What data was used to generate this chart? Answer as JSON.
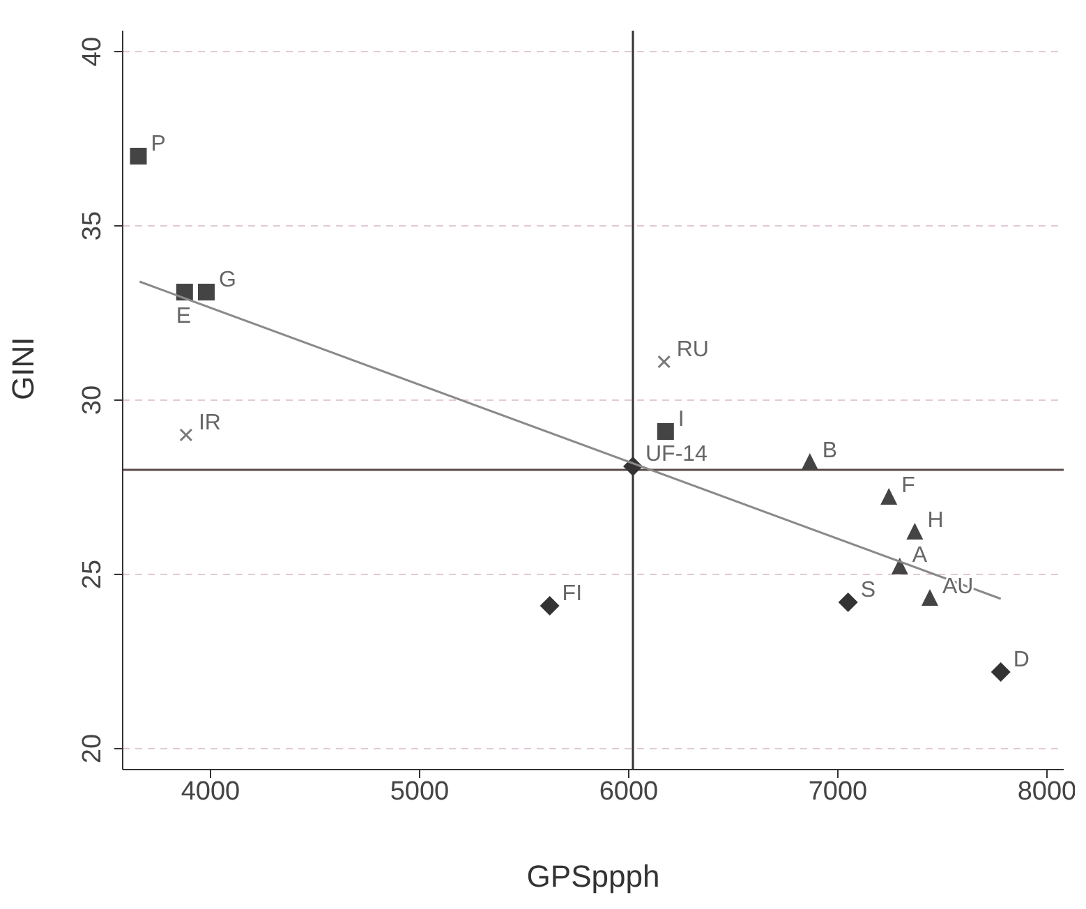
{
  "chart_data": {
    "type": "scatter",
    "xlabel": "GPSppph",
    "ylabel": "GINI",
    "xlim": [
      3580,
      8080
    ],
    "ylim": [
      19.4,
      40.6
    ],
    "xticks": [
      4000,
      5000,
      6000,
      7000,
      8000
    ],
    "yticks": [
      20,
      25,
      30,
      35,
      40
    ],
    "grid": "y",
    "legend": false,
    "series": [
      {
        "marker": "square",
        "color": "#444444",
        "x": [
          3655,
          3876,
          3980,
          6176
        ],
        "values": [
          37.0,
          33.1,
          33.1,
          29.1
        ]
      },
      {
        "marker": "cross",
        "color": "#777777",
        "x": [
          3883,
          6169
        ],
        "values": [
          29.0,
          31.1
        ]
      },
      {
        "marker": "diamond",
        "color": "#333333",
        "x": [
          6020,
          5622,
          7049,
          7779
        ],
        "values": [
          28.1,
          24.1,
          24.2,
          22.2
        ]
      },
      {
        "marker": "triangle",
        "color": "#444444",
        "x": [
          6866,
          7244,
          7368,
          7296,
          7440
        ],
        "values": [
          28.2,
          27.2,
          26.2,
          25.2,
          24.3
        ]
      },
      {
        "type": "line",
        "color": "#8a8a8a",
        "x": [
          3661,
          7779
        ],
        "values": [
          33.4,
          24.3
        ]
      }
    ],
    "ref_lines": [
      {
        "axis": "x",
        "value": 6020,
        "color": "#333333"
      },
      {
        "axis": "y",
        "value": 28.0,
        "color": "#5a4a48"
      }
    ],
    "annotations": [
      {
        "text": "P",
        "x": 3655,
        "y": 37.0
      },
      {
        "text": "E",
        "x": 3876,
        "y": 33.1
      },
      {
        "text": "G",
        "x": 3980,
        "y": 33.1
      },
      {
        "text": "I",
        "x": 6176,
        "y": 29.1
      },
      {
        "text": "IR",
        "x": 3883,
        "y": 29.0
      },
      {
        "text": "RU",
        "x": 6169,
        "y": 31.1
      },
      {
        "text": "UF-14",
        "x": 6020,
        "y": 28.1
      },
      {
        "text": "FI",
        "x": 5622,
        "y": 24.1
      },
      {
        "text": "S",
        "x": 7049,
        "y": 24.2
      },
      {
        "text": "D",
        "x": 7779,
        "y": 22.2
      },
      {
        "text": "B",
        "x": 6866,
        "y": 28.2
      },
      {
        "text": "F",
        "x": 7244,
        "y": 27.2
      },
      {
        "text": "H",
        "x": 7368,
        "y": 26.2
      },
      {
        "text": "A",
        "x": 7296,
        "y": 25.2
      },
      {
        "text": "AU",
        "x": 7440,
        "y": 24.3
      }
    ]
  }
}
